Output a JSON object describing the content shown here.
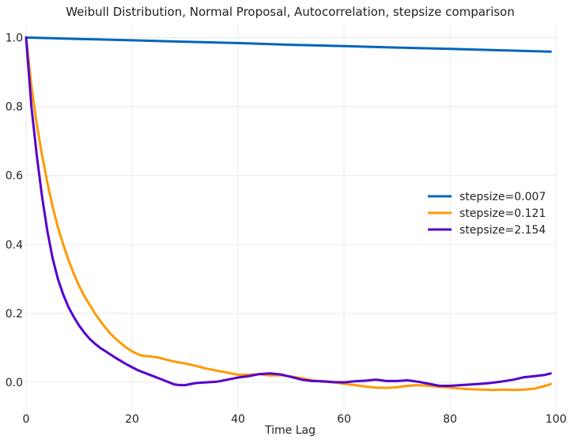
{
  "chart_data": {
    "type": "line",
    "title": "Weibull Distribution, Normal Proposal, Autocorrelation, stepsize comparison",
    "xlabel": "Time Lag",
    "ylabel": "",
    "xlim": [
      0,
      100
    ],
    "ylim": [
      -0.08,
      1.04
    ],
    "xticks": [
      0,
      20,
      40,
      60,
      80,
      100
    ],
    "yticks": [
      0,
      0.2,
      0.4,
      0.6,
      0.8,
      1
    ],
    "ytick_labels": [
      "0.0",
      "0.2",
      "0.4",
      "0.6",
      "0.8",
      "1.0"
    ],
    "grid": true,
    "legend_position": "right",
    "series": [
      {
        "name": "stepsize=0.007",
        "color": "#0066bb",
        "x": [
          0,
          10,
          20,
          30,
          40,
          50,
          60,
          70,
          80,
          90,
          99
        ],
        "y": [
          1.0,
          0.996,
          0.992,
          0.988,
          0.984,
          0.979,
          0.975,
          0.971,
          0.967,
          0.963,
          0.959
        ]
      },
      {
        "name": "stepsize=0.121",
        "color": "#ff9900",
        "x": [
          0,
          1,
          2,
          3,
          4,
          5,
          6,
          7,
          8,
          9,
          10,
          11,
          12,
          13,
          14,
          15,
          16,
          17,
          18,
          19,
          20,
          21,
          22,
          23,
          24,
          25,
          26,
          27,
          28,
          30,
          32,
          34,
          36,
          38,
          40,
          42,
          44,
          46,
          48,
          50,
          52,
          54,
          56,
          58,
          60,
          62,
          64,
          66,
          68,
          70,
          72,
          74,
          76,
          78,
          80,
          82,
          84,
          86,
          88,
          90,
          92,
          94,
          96,
          98,
          99
        ],
        "y": [
          1.0,
          0.86,
          0.75,
          0.66,
          0.58,
          0.51,
          0.45,
          0.4,
          0.355,
          0.315,
          0.28,
          0.25,
          0.225,
          0.2,
          0.178,
          0.158,
          0.14,
          0.125,
          0.112,
          0.1,
          0.09,
          0.082,
          0.077,
          0.076,
          0.074,
          0.072,
          0.068,
          0.064,
          0.06,
          0.055,
          0.048,
          0.04,
          0.034,
          0.028,
          0.022,
          0.022,
          0.024,
          0.02,
          0.021,
          0.017,
          0.012,
          0.006,
          0.002,
          0.0,
          -0.004,
          -0.008,
          -0.012,
          -0.015,
          -0.016,
          -0.014,
          -0.01,
          -0.008,
          -0.01,
          -0.013,
          -0.015,
          -0.018,
          -0.02,
          -0.021,
          -0.022,
          -0.021,
          -0.022,
          -0.021,
          -0.018,
          -0.01,
          -0.005
        ]
      },
      {
        "name": "stepsize=2.154",
        "color": "#5500cc",
        "x": [
          0,
          1,
          2,
          3,
          4,
          5,
          6,
          7,
          8,
          9,
          10,
          11,
          12,
          13,
          14,
          15,
          16,
          17,
          18,
          19,
          20,
          21,
          22,
          23,
          24,
          25,
          26,
          27,
          28,
          29,
          30,
          32,
          34,
          36,
          38,
          40,
          42,
          44,
          46,
          48,
          50,
          52,
          54,
          56,
          58,
          60,
          62,
          64,
          66,
          68,
          70,
          72,
          74,
          76,
          78,
          80,
          82,
          84,
          86,
          88,
          90,
          92,
          94,
          96,
          98,
          99
        ],
        "y": [
          1.0,
          0.8,
          0.66,
          0.54,
          0.44,
          0.36,
          0.3,
          0.255,
          0.218,
          0.19,
          0.165,
          0.144,
          0.126,
          0.112,
          0.1,
          0.09,
          0.08,
          0.07,
          0.061,
          0.052,
          0.044,
          0.036,
          0.03,
          0.024,
          0.018,
          0.012,
          0.006,
          0.0,
          -0.006,
          -0.008,
          -0.008,
          -0.002,
          0.0,
          0.002,
          0.008,
          0.014,
          0.018,
          0.024,
          0.026,
          0.023,
          0.016,
          0.008,
          0.004,
          0.003,
          0.001,
          0.0,
          0.003,
          0.005,
          0.008,
          0.004,
          0.004,
          0.006,
          0.002,
          -0.004,
          -0.01,
          -0.01,
          -0.008,
          -0.006,
          -0.004,
          -0.001,
          0.003,
          0.008,
          0.015,
          0.018,
          0.022,
          0.026
        ]
      }
    ]
  }
}
